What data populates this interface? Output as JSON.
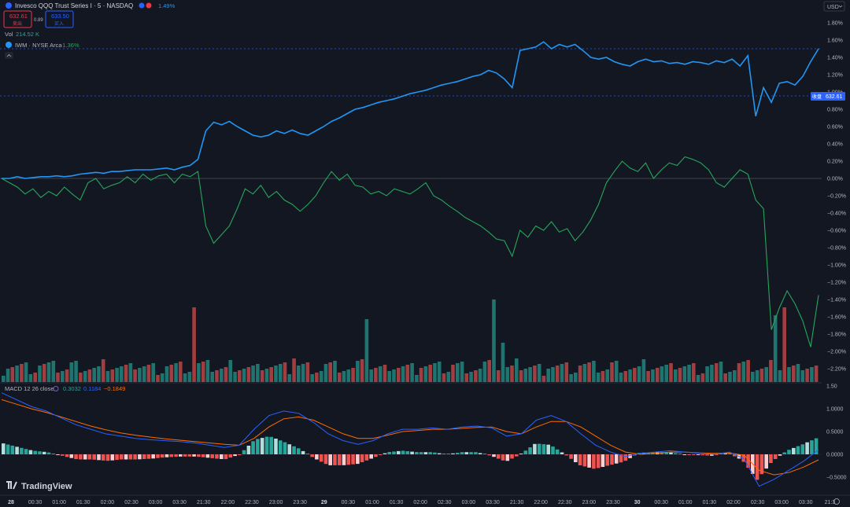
{
  "header": {
    "symbol_title": "Invesco QQQ Trust Series I · 5 · NASDAQ",
    "change_pct": "1.49%",
    "sell_price": "632.61",
    "sell_label": "卖出",
    "spread": "0.89",
    "buy_price": "633.50",
    "buy_label": "买入",
    "vol_label": "Vol",
    "vol_value": "214.52 K",
    "compare_symbol": "IWM · NYSE Arca",
    "compare_change": "−1.36%",
    "currency": "USD"
  },
  "price_label": {
    "tag": "收盘",
    "value": "632.61"
  },
  "macd": {
    "label": "MACD 12 26 close",
    "hist_value": "0.3032",
    "macd_value": "0.1184",
    "signal_value": "−0.1849"
  },
  "x_ticks": [
    "28",
    "00:30",
    "01:00",
    "01:30",
    "02:00",
    "02:30",
    "03:00",
    "03:30",
    "21:30",
    "22:00",
    "22:30",
    "23:00",
    "23:30",
    "29",
    "00:30",
    "01:00",
    "01:30",
    "02:00",
    "02:30",
    "03:00",
    "03:30",
    "21:30",
    "22:00",
    "22:30",
    "23:00",
    "23:30",
    "30",
    "00:30",
    "01:00",
    "01:30",
    "02:00",
    "02:30",
    "03:00",
    "03:30",
    "21:3"
  ],
  "y_ticks_main": [
    "1.80%",
    "1.60%",
    "1.40%",
    "1.20%",
    "1.00%",
    "0.80%",
    "0.60%",
    "0.40%",
    "0.20%",
    "0.00%",
    "−0.20%",
    "−0.40%",
    "−0.60%",
    "−0.80%",
    "−1.00%",
    "−1.20%",
    "−1.40%",
    "−1.60%",
    "−1.80%",
    "−2.00%",
    "−2.20%"
  ],
  "y_ticks_macd": [
    "1.50",
    "1.0000",
    "0.5000",
    "0.0000",
    "−0.5000"
  ],
  "watermark": "TradingView",
  "colors": {
    "background": "#131722",
    "qqq": "#2196f3",
    "iwm": "#26a65b",
    "vol_up": "#26a69a",
    "vol_down": "#ef5350",
    "macd": "#2962ff",
    "signal": "#ff6d00"
  },
  "chart_data": {
    "type": "line",
    "title": "",
    "x": [
      0,
      1,
      2,
      3,
      4,
      5,
      6,
      7,
      8,
      9,
      10,
      11,
      12,
      13,
      14,
      15,
      16,
      17,
      18,
      19,
      20,
      21,
      22,
      23,
      24,
      25,
      26,
      27,
      28,
      29,
      30,
      31,
      32,
      33,
      34,
      35,
      36,
      37,
      38,
      39,
      40,
      41,
      42,
      43,
      44,
      45,
      46,
      47,
      48,
      49,
      50,
      51,
      52,
      53,
      54,
      55,
      56,
      57,
      58,
      59,
      60,
      61,
      62,
      63,
      64,
      65,
      66,
      67,
      68,
      69,
      70,
      71,
      72,
      73,
      74,
      75,
      76,
      77,
      78,
      79,
      80,
      81,
      82,
      83,
      84,
      85,
      86,
      87,
      88,
      89,
      90,
      91,
      92,
      93,
      94,
      95,
      96,
      97,
      98,
      99,
      100,
      101,
      102,
      103,
      104
    ],
    "ylim": [
      -2.3,
      1.9
    ],
    "series": [
      {
        "name": "QQQ",
        "values": [
          0.0,
          0.0,
          0.02,
          0.0,
          0.01,
          0.02,
          0.02,
          0.03,
          0.02,
          0.03,
          0.05,
          0.06,
          0.07,
          0.06,
          0.08,
          0.08,
          0.09,
          0.1,
          0.1,
          0.1,
          0.11,
          0.12,
          0.1,
          0.13,
          0.15,
          0.22,
          0.55,
          0.65,
          0.62,
          0.66,
          0.6,
          0.55,
          0.5,
          0.48,
          0.5,
          0.55,
          0.52,
          0.56,
          0.52,
          0.5,
          0.55,
          0.6,
          0.66,
          0.7,
          0.75,
          0.8,
          0.82,
          0.85,
          0.88,
          0.9,
          0.92,
          0.95,
          0.98,
          1.0,
          1.02,
          1.05,
          1.08,
          1.1,
          1.12,
          1.15,
          1.18,
          1.2,
          1.25,
          1.22,
          1.15,
          1.05,
          1.48,
          1.5,
          1.52,
          1.58,
          1.5,
          1.55,
          1.52,
          1.55,
          1.48,
          1.4,
          1.38,
          1.4,
          1.35,
          1.32,
          1.3,
          1.35,
          1.38,
          1.35,
          1.36,
          1.33,
          1.34,
          1.32,
          1.35,
          1.34,
          1.32,
          1.36,
          1.34,
          1.38,
          1.3,
          1.42,
          0.72,
          1.05,
          0.88,
          1.1,
          1.12,
          1.08,
          1.18,
          1.35,
          1.5
        ]
      },
      {
        "name": "IWM",
        "values": [
          0.0,
          -0.05,
          -0.1,
          -0.18,
          -0.12,
          -0.22,
          -0.15,
          -0.2,
          -0.1,
          -0.18,
          -0.25,
          -0.05,
          0.0,
          -0.12,
          -0.08,
          -0.05,
          0.02,
          -0.05,
          0.05,
          -0.02,
          0.03,
          0.05,
          -0.05,
          0.05,
          0.02,
          0.08,
          -0.55,
          -0.75,
          -0.65,
          -0.55,
          -0.35,
          -0.12,
          -0.18,
          -0.08,
          -0.22,
          -0.15,
          -0.25,
          -0.3,
          -0.38,
          -0.3,
          -0.2,
          -0.05,
          0.08,
          -0.02,
          0.05,
          -0.08,
          -0.1,
          -0.18,
          -0.15,
          -0.2,
          -0.12,
          -0.15,
          -0.18,
          -0.12,
          -0.05,
          -0.2,
          -0.25,
          -0.32,
          -0.38,
          -0.45,
          -0.5,
          -0.55,
          -0.62,
          -0.7,
          -0.72,
          -0.9,
          -0.6,
          -0.68,
          -0.55,
          -0.6,
          -0.5,
          -0.62,
          -0.58,
          -0.72,
          -0.62,
          -0.48,
          -0.3,
          -0.05,
          0.08,
          0.2,
          0.12,
          0.08,
          0.18,
          0.0,
          0.1,
          0.18,
          0.15,
          0.25,
          0.22,
          0.18,
          0.1,
          -0.05,
          -0.1,
          0.0,
          0.1,
          0.05,
          -0.25,
          -0.35,
          -1.75,
          -1.5,
          -1.3,
          -1.45,
          -1.65,
          -1.95,
          -1.35
        ]
      }
    ]
  }
}
